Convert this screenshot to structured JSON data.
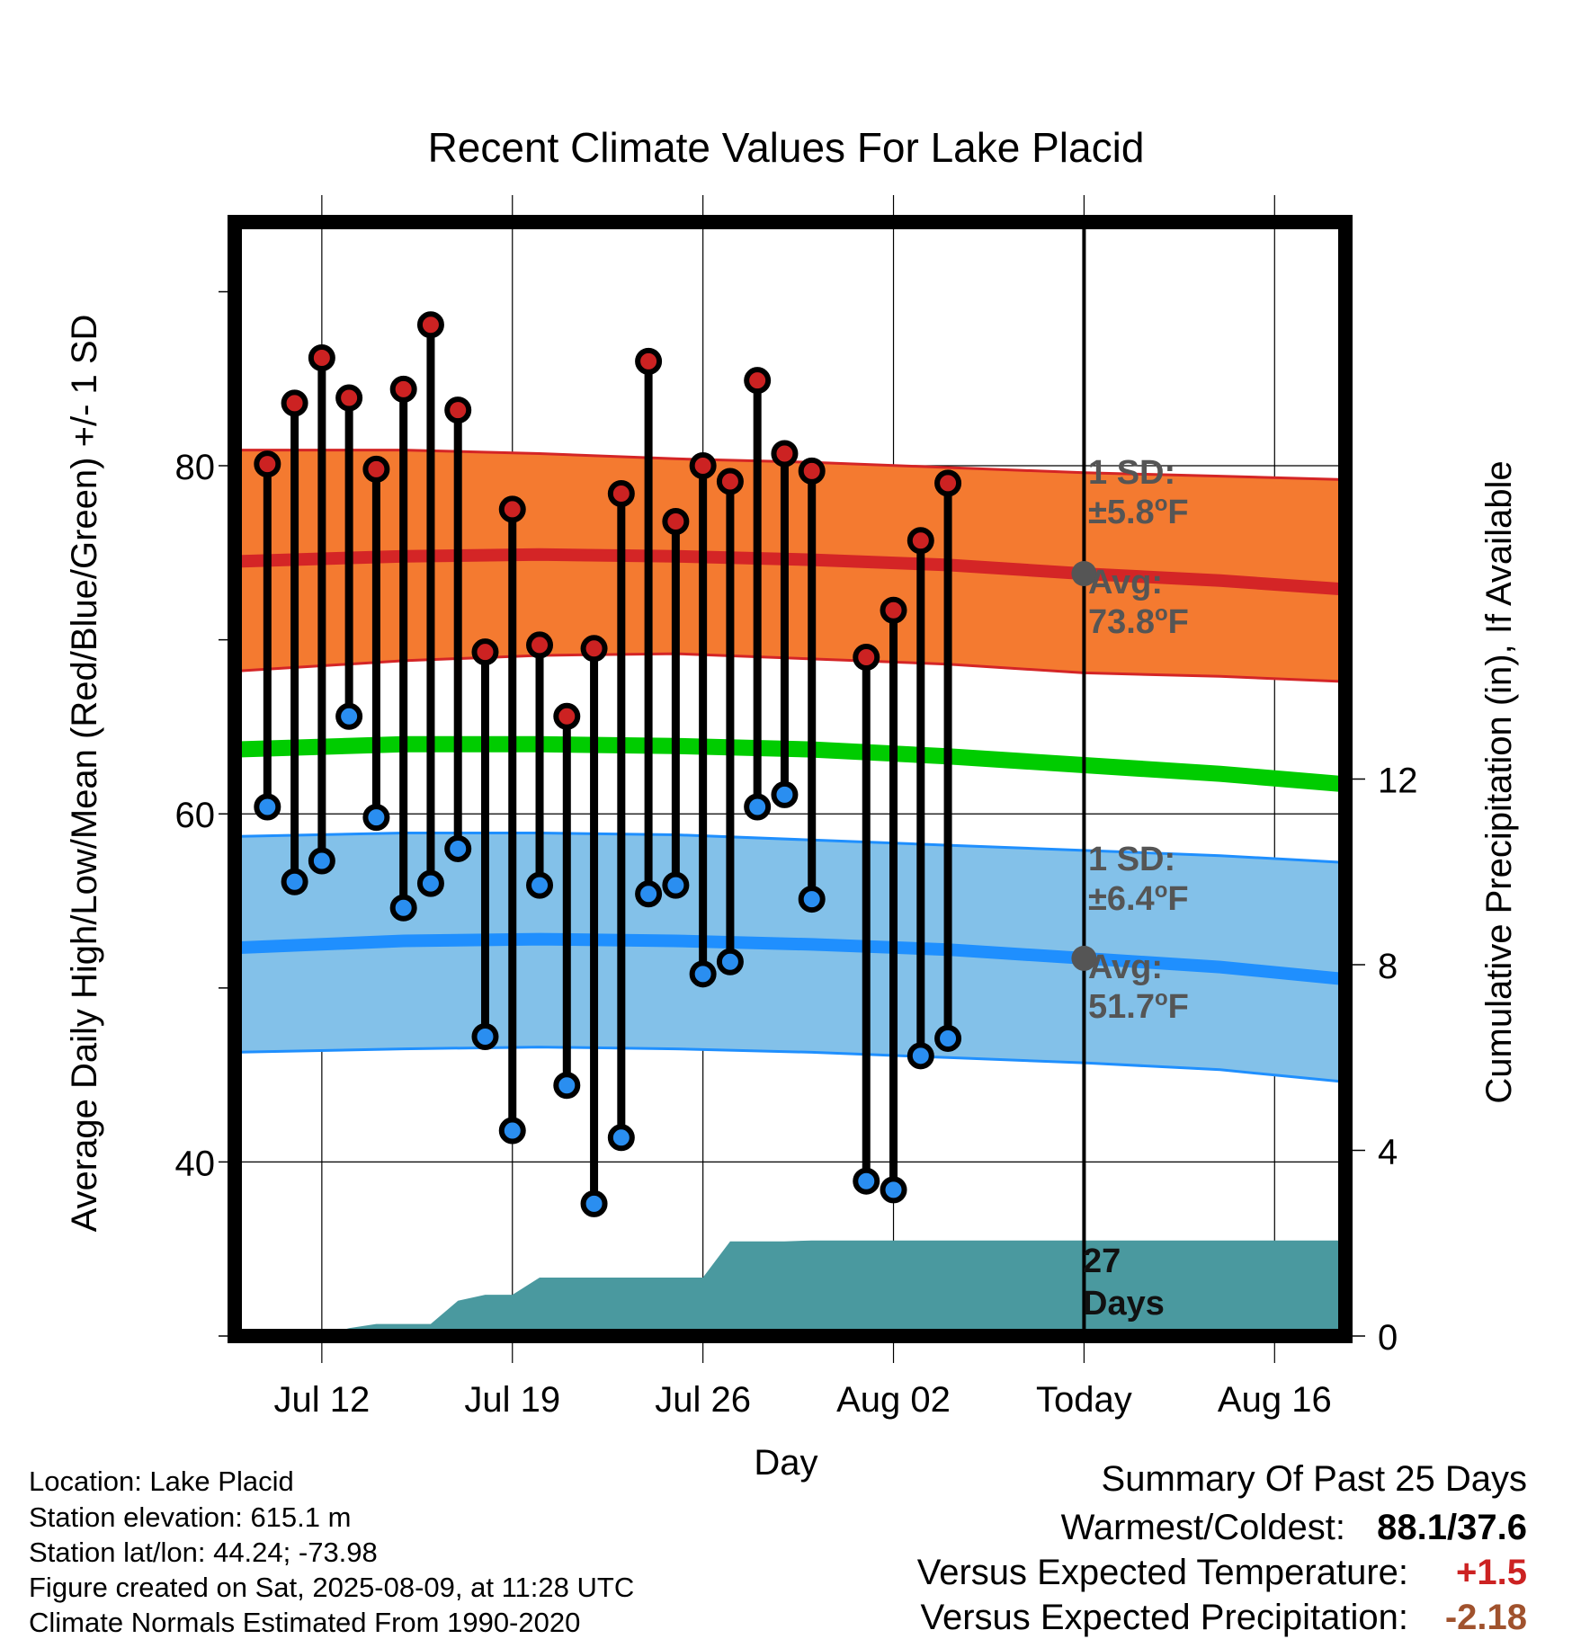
{
  "colors": {
    "high_band": "#f47a30",
    "high_line": "#d42526",
    "low_band": "#83c1e9",
    "low_line": "#1f8ffe",
    "mean_line": "#00cc00",
    "precip": "#4a999f",
    "high_dot": "#cc2222",
    "low_dot": "#2a8ef0",
    "marker": "#555555",
    "positive_anomaly": "#cc2222",
    "negative_anomaly": "#a0522d"
  },
  "chart_data": {
    "type": "line",
    "title": "Recent Climate Values For Lake Placid",
    "xlabel": "Day",
    "ylabel": "Average Daily High/Low/Mean (Red/Blue/Green) +/- 1 SD",
    "y2label": "Cumulative Precipitation (in), If Available",
    "x_ticks": [
      "Jul 12",
      "Jul 19",
      "Jul 26",
      "Aug 02",
      "Today",
      "Aug 16"
    ],
    "y_ticks": [
      "40",
      "60",
      "80"
    ],
    "y2_ticks": [
      "0",
      "4",
      "8",
      "12"
    ],
    "ylim": [
      30,
      94
    ],
    "y2lim": [
      0,
      24
    ],
    "xlim_days": [
      -31.2,
      9.6
    ],
    "x_unit": "days relative to Today (Aug 09)",
    "daily_temps": {
      "x": [
        -30,
        -29,
        -28,
        -27,
        -26,
        -25,
        -24,
        -23,
        -22,
        -21,
        -20,
        -19,
        -18,
        -17,
        -16,
        -15,
        -14,
        -13,
        -12,
        -11,
        -10,
        -8,
        -7,
        -6,
        -5
      ],
      "high": [
        80.1,
        83.6,
        86.2,
        83.9,
        79.8,
        84.4,
        88.1,
        83.2,
        69.3,
        77.5,
        69.7,
        65.6,
        69.5,
        78.4,
        86.0,
        76.8,
        80.0,
        79.1,
        84.9,
        80.7,
        79.7,
        69.0,
        71.7,
        75.7,
        79.0
      ],
      "low": [
        60.4,
        56.1,
        57.3,
        65.6,
        59.8,
        54.6,
        56.0,
        58.0,
        47.2,
        41.8,
        55.9,
        44.4,
        37.6,
        41.4,
        55.4,
        55.9,
        50.8,
        51.5,
        60.4,
        61.1,
        55.1,
        38.9,
        38.4,
        46.1,
        47.1
      ]
    },
    "normals": {
      "x": [
        -31.2,
        -25,
        -20,
        -15,
        -10,
        -5,
        0,
        5,
        9.6
      ],
      "high_avg": [
        74.5,
        74.8,
        74.9,
        74.8,
        74.6,
        74.3,
        73.8,
        73.4,
        72.9
      ],
      "high_sd_upper": [
        80.9,
        80.9,
        80.7,
        80.4,
        80.2,
        79.9,
        79.6,
        79.4,
        79.2
      ],
      "high_sd_lower": [
        68.2,
        68.8,
        69.1,
        69.2,
        68.9,
        68.6,
        68.1,
        67.9,
        67.6
      ],
      "mean": [
        63.7,
        64.0,
        64.0,
        63.9,
        63.7,
        63.3,
        62.8,
        62.3,
        61.7
      ],
      "low_avg": [
        52.3,
        52.7,
        52.8,
        52.7,
        52.5,
        52.2,
        51.7,
        51.2,
        50.5
      ],
      "low_sd_upper": [
        58.7,
        58.9,
        58.9,
        58.8,
        58.5,
        58.2,
        57.9,
        57.6,
        57.2
      ],
      "low_sd_lower": [
        46.3,
        46.5,
        46.6,
        46.5,
        46.3,
        46.0,
        45.7,
        45.3,
        44.6
      ]
    },
    "precip": {
      "x": [
        -28,
        -27,
        -26,
        -25,
        -24,
        -23,
        -22,
        -21,
        -20,
        -19,
        -18,
        -17,
        -16,
        -15,
        -14,
        -13,
        -12,
        -11,
        -10,
        -5,
        0,
        9.6
      ],
      "cum": [
        0,
        0.17,
        0.26,
        0.26,
        0.26,
        0.76,
        0.89,
        0.89,
        1.26,
        1.26,
        1.26,
        1.26,
        1.26,
        1.26,
        1.26,
        2.04,
        2.04,
        2.04,
        2.06,
        2.06,
        2.06,
        2.06
      ]
    },
    "annotations": {
      "high_sd": "1 SD:",
      "high_sd_val": "±5.8°F",
      "high_avg": "Avg:",
      "high_avg_val": "73.8°F",
      "low_sd": "1 SD:",
      "low_sd_val": "±6.4°F",
      "low_avg": "Avg:",
      "low_avg_val": "51.7°F",
      "days_num": "27",
      "days_word": "Days"
    }
  },
  "footer": {
    "location": "Location: Lake Placid",
    "elevation": "Station elevation: 615.1 m",
    "latlon": "Station lat/lon: 44.24; -73.98",
    "created": "Figure created on Sat, 2025-08-09, at 11:28 UTC",
    "normals": "Climate Normals Estimated From 1990-2020"
  },
  "summary": {
    "heading": "Summary Of Past 25 Days",
    "extremes_label": "Warmest/Coldest:",
    "extremes_value": "88.1/37.6",
    "temp_label": "Versus Expected Temperature:",
    "temp_value": "+1.5",
    "precip_label": "Versus Expected Precipitation:",
    "precip_value": "-2.18"
  }
}
